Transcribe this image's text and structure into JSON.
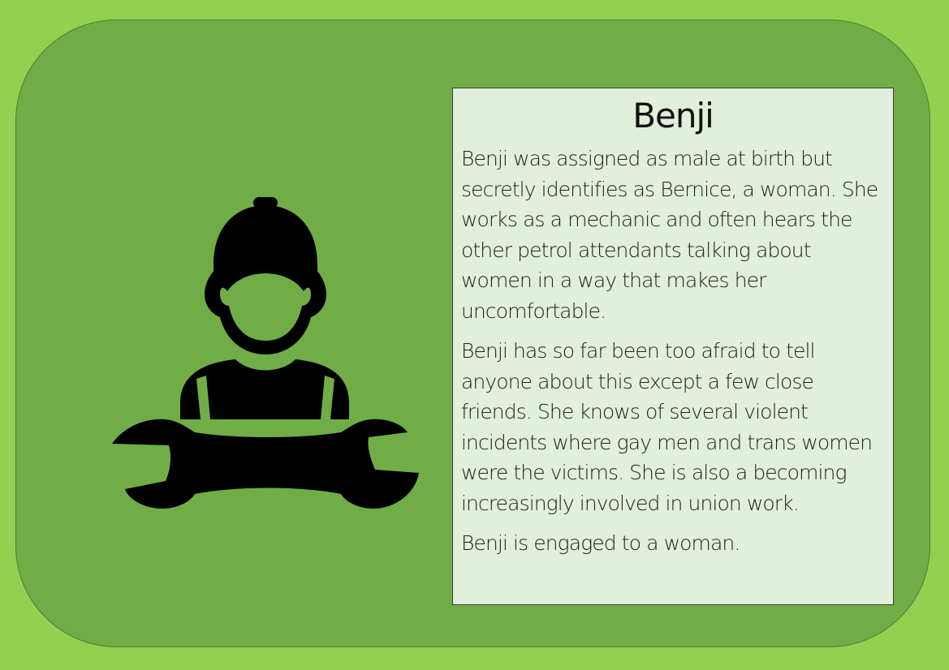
{
  "profile": {
    "name": "Benji",
    "icon": "mechanic-with-wrench-icon",
    "paragraphs": [
      "Benji was assigned as male at birth but secretly identifies as Bernice, a woman. She works as a mechanic and often hears the other petrol attendants talking about women in a way that makes her uncomfortable.",
      "Benji has so far been too afraid to tell anyone about this except a few close friends. She knows of several violent incidents where gay men and trans women were the victims. She is also a becoming increasingly involved in union work.",
      "Benji is engaged to a woman."
    ]
  },
  "colors": {
    "page_background": "#92d050",
    "card_background": "#70ad47",
    "card_border": "#507e32",
    "text_box_background": "#e2efda",
    "text_box_border": "#404040",
    "icon_color": "#000000"
  }
}
